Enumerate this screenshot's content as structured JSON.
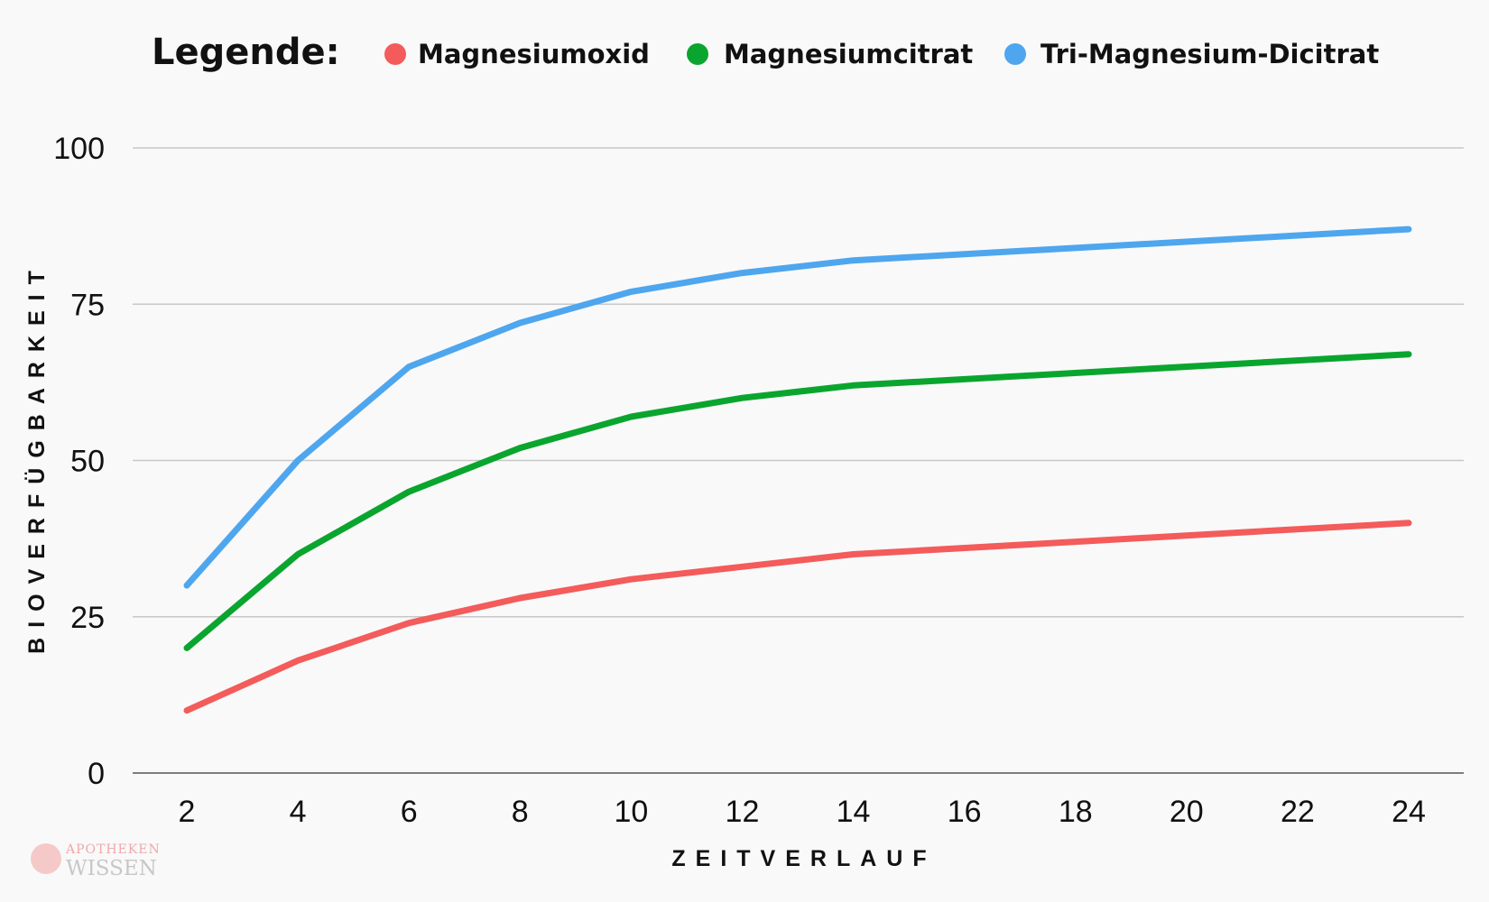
{
  "chart_data": {
    "type": "line",
    "legend_title": "Legende:",
    "legend_position": "top",
    "x": [
      2,
      4,
      6,
      8,
      10,
      12,
      14,
      16,
      18,
      20,
      22,
      24
    ],
    "xlabel": "ZEITVERLAUF",
    "ylabel": "BIOVERFÜGBARKEIT",
    "xlim": [
      2,
      24
    ],
    "ylim": [
      0,
      100
    ],
    "yticks": [
      0,
      25,
      50,
      75,
      100
    ],
    "grid": true,
    "series": [
      {
        "name": "Magnesiumoxid",
        "color": "#f45b5b",
        "points": [
          [
            2,
            10
          ],
          [
            4,
            18
          ],
          [
            6,
            24
          ],
          [
            8,
            28
          ],
          [
            10,
            31
          ],
          [
            12,
            33
          ],
          [
            14,
            35
          ],
          [
            24,
            40
          ]
        ]
      },
      {
        "name": "Magnesiumcitrat",
        "color": "#0aa52e",
        "points": [
          [
            2,
            20
          ],
          [
            4,
            35
          ],
          [
            6,
            45
          ],
          [
            8,
            52
          ],
          [
            10,
            57
          ],
          [
            12,
            60
          ],
          [
            14,
            62
          ],
          [
            24,
            67
          ]
        ]
      },
      {
        "name": "Tri-Magnesium-Dicitrat",
        "color": "#4ea6ee",
        "points": [
          [
            2,
            30
          ],
          [
            4,
            50
          ],
          [
            6,
            65
          ],
          [
            8,
            72
          ],
          [
            10,
            77
          ],
          [
            12,
            80
          ],
          [
            14,
            82
          ],
          [
            24,
            87
          ]
        ]
      }
    ]
  },
  "watermark": {
    "line1": "APOTHEKEN",
    "line2": "WISSEN",
    "color": "#f2a0a0"
  }
}
